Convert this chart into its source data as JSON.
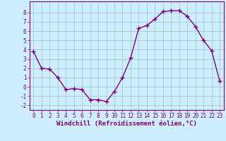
{
  "x": [
    0,
    1,
    2,
    3,
    4,
    5,
    6,
    7,
    8,
    9,
    10,
    11,
    12,
    13,
    14,
    15,
    16,
    17,
    18,
    19,
    20,
    21,
    22,
    23
  ],
  "y": [
    3.8,
    2.0,
    1.9,
    1.0,
    -0.3,
    -0.2,
    -0.3,
    -1.4,
    -1.4,
    -1.6,
    -0.5,
    1.0,
    3.1,
    6.3,
    6.6,
    7.3,
    8.1,
    8.2,
    8.2,
    7.6,
    6.5,
    5.0,
    3.9,
    0.6
  ],
  "line_color": "#800080",
  "marker": "+",
  "markersize": 4,
  "linewidth": 1.0,
  "xlabel": "Windchill (Refroidissement éolien,°C)",
  "xlabel_fontsize": 6.5,
  "bg_color": "#cceeff",
  "grid_color": "#aacccc",
  "xlim": [
    -0.5,
    23.5
  ],
  "ylim": [
    -2.5,
    9.2
  ],
  "yticks": [
    -2,
    -1,
    0,
    1,
    2,
    3,
    4,
    5,
    6,
    7,
    8
  ],
  "xticks": [
    0,
    1,
    2,
    3,
    4,
    5,
    6,
    7,
    8,
    9,
    10,
    11,
    12,
    13,
    14,
    15,
    16,
    17,
    18,
    19,
    20,
    21,
    22,
    23
  ],
  "tick_fontsize": 5.5,
  "tick_color": "#800080",
  "spine_color": "#800080"
}
